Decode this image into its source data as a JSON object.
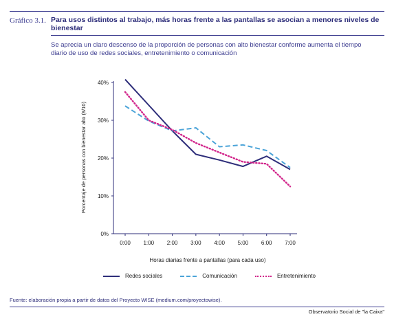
{
  "header": {
    "label": "Gráfico 3.1.",
    "title": "Para usos distintos al trabajo, más horas frente a las pantallas se asocian a menores niveles de bienestar",
    "subtitle": "Se aprecia un claro descenso de la proporción de personas con alto bienestar conforme aumenta el tiempo diario de uso de redes sociales, entretenimiento o comunicación"
  },
  "footer": {
    "source": "Fuente: elaboración propia a partir de datos del Proyecto WISE (medium.com/proyectowise).",
    "publisher": "Observatorio Social de \"la Caixa\""
  },
  "colors": {
    "axis": "#2e2e7a",
    "grid": "#e6e6ea"
  },
  "chart_data": {
    "type": "line",
    "title": "",
    "xlabel": "Horas diarias frente a pantallas (para cada uso)",
    "ylabel": "Porcentaje de personas con bienestar alto (8/10)",
    "categories": [
      "0:00",
      "1:00",
      "2:00",
      "3:00",
      "4:00",
      "5:00",
      "6:00",
      "7:00"
    ],
    "ylim": [
      0,
      40
    ],
    "yticks": [
      0,
      10,
      20,
      30,
      40
    ],
    "ytick_labels": [
      "0%",
      "10%",
      "20%",
      "30%",
      "40%"
    ],
    "grid": false,
    "legend_position": "bottom",
    "series": [
      {
        "name": "Redes sociales",
        "values": [
          40.8,
          34.0,
          27.2,
          21.0,
          19.5,
          17.8,
          20.5,
          17.0
        ],
        "color": "#2e2e7a",
        "style": "solid"
      },
      {
        "name": "Comunicación",
        "values": [
          33.8,
          29.8,
          27.2,
          28.0,
          23.0,
          23.5,
          22.0,
          17.5
        ],
        "color": "#4aa3d8",
        "style": "dashed"
      },
      {
        "name": "Entretenimiento",
        "values": [
          37.5,
          30.0,
          27.5,
          24.0,
          21.5,
          19.0,
          18.5,
          12.5
        ],
        "color": "#d1238a",
        "style": "dotted"
      }
    ]
  }
}
